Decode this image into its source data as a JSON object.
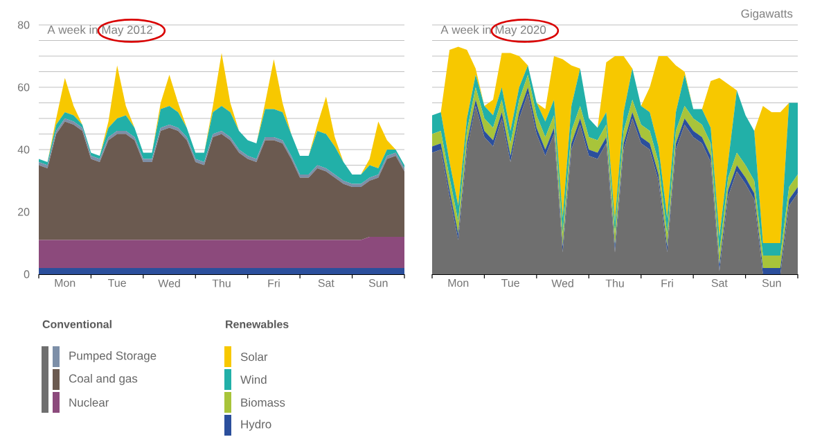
{
  "chart_data": [
    {
      "type": "area",
      "title": "A week in May 2012",
      "stacked": true,
      "grid": "y",
      "legend": "bottom",
      "categories": [
        null,
        null,
        null,
        "Mon",
        null,
        null,
        null,
        null,
        null,
        "Tue",
        null,
        null,
        null,
        null,
        null,
        "Wed",
        null,
        null,
        null,
        null,
        null,
        "Thu",
        null,
        null,
        null,
        null,
        null,
        "Fri",
        null,
        null,
        null,
        null,
        null,
        "Sat",
        null,
        null,
        null,
        null,
        null,
        "Sun",
        null,
        null,
        null
      ],
      "annotations": [
        "Conventional",
        "Renewables"
      ],
      "ylim": [
        0,
        80
      ],
      "yticks": [
        0,
        {
          "value": 5,
          "label": null
        },
        {
          "value": 10,
          "label": null
        },
        {
          "value": 15,
          "label": null
        },
        20,
        {
          "value": 25,
          "label": null
        },
        {
          "value": 30,
          "label": null
        },
        {
          "value": 35,
          "label": null
        },
        40,
        {
          "value": 45,
          "label": null
        },
        {
          "value": 50,
          "label": null
        },
        {
          "value": 55,
          "label": null
        },
        60,
        {
          "value": 65,
          "label": null
        },
        {
          "value": 70,
          "label": null
        },
        {
          "value": 75,
          "label": null
        },
        80
      ],
      "series": [
        {
          "name": "Hydro",
          "color": "#2b4f9c",
          "values": [
            2,
            2,
            2,
            2,
            2,
            2,
            2,
            2,
            2,
            2,
            2,
            2,
            2,
            2,
            2,
            2,
            2,
            2,
            2,
            2,
            2,
            2,
            2,
            2,
            2,
            2,
            2,
            2,
            2,
            2,
            2,
            2,
            2,
            2,
            2,
            2,
            2,
            2,
            2,
            2,
            2,
            2,
            2
          ]
        },
        {
          "name": "Nuclear",
          "color": "#8c4a7c",
          "values": [
            9,
            9,
            9,
            9,
            9,
            9,
            9,
            9,
            9,
            9,
            9,
            9,
            9,
            9,
            9,
            9,
            9,
            9,
            9,
            9,
            9,
            9,
            9,
            9,
            9,
            9,
            9,
            9,
            9,
            9,
            9,
            9,
            9,
            9,
            9,
            9,
            9,
            9,
            10,
            10,
            10,
            10,
            10
          ]
        },
        {
          "name": "Coal and gas",
          "color": "#6b5a50",
          "values": [
            24,
            23,
            34,
            38,
            37,
            35,
            26,
            25,
            32,
            34,
            34,
            32,
            25,
            25,
            35,
            36,
            35,
            32,
            25,
            24,
            33,
            34,
            32,
            28,
            26,
            25,
            32,
            32,
            31,
            26,
            20,
            20,
            23,
            22,
            20,
            18,
            17,
            17,
            18,
            19,
            25,
            26,
            21
          ]
        },
        {
          "name": "Pumped Storage",
          "color": "#7d8fa8",
          "values": [
            1,
            1,
            1,
            1,
            1,
            1,
            1,
            1,
            1,
            1,
            1,
            1,
            1,
            1,
            1,
            1,
            1,
            1,
            1,
            1,
            1,
            1,
            1,
            1,
            1,
            1,
            1,
            1,
            1,
            1,
            1,
            1,
            1,
            1,
            1,
            1,
            1,
            1,
            1,
            1,
            1,
            1,
            1
          ]
        },
        {
          "name": "Wind",
          "color": "#22b0a8",
          "values": [
            1,
            1,
            2,
            2,
            2,
            1,
            1,
            1,
            3,
            4,
            5,
            3,
            2,
            2,
            6,
            6,
            5,
            3,
            2,
            3,
            7,
            8,
            8,
            6,
            5,
            5,
            9,
            9,
            9,
            7,
            6,
            6,
            11,
            11,
            9,
            6,
            3,
            3,
            4,
            2,
            2,
            1,
            1
          ]
        },
        {
          "name": "Solar",
          "color": "#f7c800",
          "values": [
            0,
            0,
            2,
            11,
            3,
            0,
            0,
            0,
            2,
            17,
            3,
            0,
            0,
            0,
            2,
            10,
            3,
            0,
            0,
            0,
            2,
            17,
            3,
            0,
            0,
            0,
            2,
            16,
            3,
            0,
            0,
            0,
            2,
            12,
            3,
            0,
            0,
            0,
            2,
            15,
            3,
            0,
            0
          ]
        }
      ]
    },
    {
      "type": "area",
      "title": "A week in May 2020",
      "ylabel": "Gigawatts",
      "stacked": true,
      "grid": "y",
      "legend": "bottom",
      "tick_labels": "x",
      "categories": [
        null,
        null,
        null,
        "Mon",
        null,
        null,
        null,
        null,
        null,
        "Tue",
        null,
        null,
        null,
        null,
        null,
        "Wed",
        null,
        null,
        null,
        null,
        null,
        "Thu",
        null,
        null,
        null,
        null,
        null,
        "Fri",
        null,
        null,
        null,
        null,
        null,
        "Sat",
        null,
        null,
        null,
        null,
        null,
        "Sun",
        null,
        null,
        null
      ],
      "ylim": [
        0,
        80
      ],
      "yticks": [
        0,
        {
          "value": 5,
          "label": null
        },
        {
          "value": 10,
          "label": null
        },
        {
          "value": 15,
          "label": null
        },
        20,
        {
          "value": 25,
          "label": null
        },
        {
          "value": 30,
          "label": null
        },
        {
          "value": 35,
          "label": null
        },
        40,
        {
          "value": 45,
          "label": null
        },
        {
          "value": 50,
          "label": null
        },
        {
          "value": 55,
          "label": null
        },
        60,
        {
          "value": 65,
          "label": null
        },
        {
          "value": 70,
          "label": null
        },
        {
          "value": 75,
          "label": null
        },
        80
      ],
      "series": [
        {
          "color": "#6f6f6f",
          "values": [
            39,
            40,
            25,
            11,
            40,
            54,
            44,
            41,
            50,
            36,
            50,
            58,
            45,
            38,
            45,
            7,
            40,
            48,
            38,
            37,
            42,
            7,
            40,
            50,
            42,
            40,
            30,
            7,
            40,
            48,
            44,
            42,
            36,
            1,
            25,
            33,
            29,
            24,
            0,
            0,
            0,
            22,
            26
          ]
        },
        {
          "color": "#2b4f9c",
          "values": [
            2,
            2,
            2,
            2,
            2,
            2,
            2,
            2,
            2,
            2,
            2,
            2,
            2,
            2,
            2,
            2,
            2,
            2,
            2,
            2,
            2,
            2,
            2,
            2,
            2,
            2,
            2,
            2,
            2,
            2,
            2,
            2,
            2,
            2,
            2,
            2,
            2,
            2,
            2,
            2,
            2,
            2,
            2
          ]
        },
        {
          "name": "Biomass",
          "color": "#a8c43a",
          "values": [
            4,
            4,
            4,
            4,
            4,
            4,
            4,
            4,
            4,
            4,
            4,
            4,
            4,
            4,
            4,
            4,
            4,
            4,
            4,
            4,
            4,
            4,
            4,
            4,
            4,
            4,
            4,
            4,
            4,
            4,
            4,
            4,
            4,
            4,
            4,
            4,
            4,
            4,
            4,
            4,
            4,
            4,
            4
          ]
        },
        {
          "color": "#22b0a8",
          "values": [
            6,
            6,
            5,
            5,
            4,
            4,
            4,
            4,
            4,
            4,
            4,
            3,
            4,
            5,
            5,
            5,
            8,
            12,
            6,
            4,
            4,
            4,
            6,
            10,
            6,
            6,
            5,
            5,
            6,
            10,
            3,
            5,
            5,
            5,
            5,
            20,
            16,
            16,
            4,
            4,
            4,
            27,
            23
          ]
        },
        {
          "color": "#f7c800",
          "values": [
            0,
            0,
            36,
            51,
            22,
            2,
            0,
            5,
            11,
            25,
            10,
            0,
            0,
            4,
            14,
            51,
            13,
            0,
            0,
            0,
            16,
            53,
            18,
            0,
            0,
            8,
            29,
            52,
            15,
            1,
            0,
            0,
            15,
            51,
            25,
            0,
            0,
            0,
            44,
            42,
            42,
            0,
            0
          ]
        }
      ]
    }
  ]
}
